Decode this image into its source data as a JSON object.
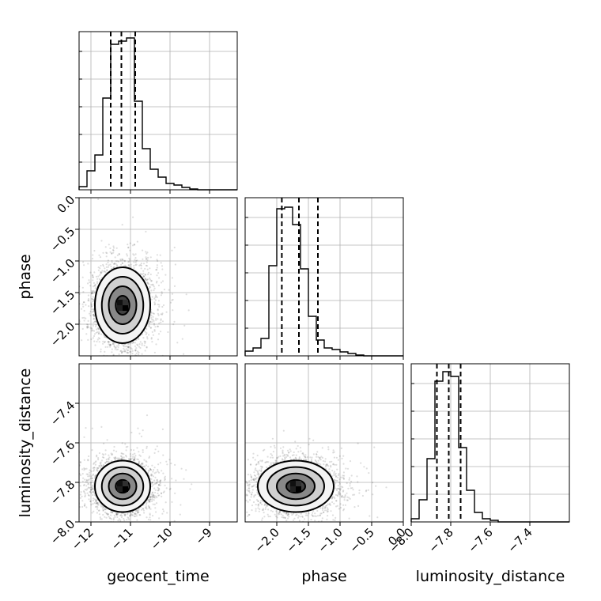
{
  "chart_data": {
    "type": "corner",
    "parameters": [
      "geocent_time",
      "phase",
      "luminosity_distance"
    ],
    "axis_labels": {
      "geocent_time": "geocent_time",
      "phase": "phase",
      "luminosity_distance": "luminosity_distance"
    },
    "ranges": {
      "geocent_time": [
        -12.3,
        -8.3
      ],
      "phase": [
        -2.5,
        0.0
      ],
      "luminosity_distance": [
        -8.0,
        -7.2
      ]
    },
    "ticks": {
      "geocent_time": {
        "values": [
          -12,
          -11,
          -10,
          -9
        ],
        "labels": [
          "−12",
          "−11",
          "−10",
          "−9"
        ]
      },
      "phase": {
        "values": [
          -2.0,
          -1.5,
          -1.0,
          -0.5,
          0.0
        ],
        "labels": [
          "−2.0",
          "−1.5",
          "−1.0",
          "−0.5",
          "0.0"
        ]
      },
      "luminosity_distance": {
        "values": [
          -8.0,
          -7.8,
          -7.6,
          -7.4
        ],
        "labels": [
          "−8.0",
          "−7.8",
          "−7.6",
          "−7.4"
        ]
      }
    },
    "grid": true,
    "histograms": {
      "geocent_time": {
        "bins": 20,
        "counts": [
          0.02,
          0.12,
          0.22,
          0.58,
          0.92,
          0.94,
          0.96,
          0.56,
          0.26,
          0.13,
          0.08,
          0.04,
          0.03,
          0.015,
          0.005,
          0.0,
          0.0,
          0.0,
          0.0,
          0.0
        ],
        "quantiles": [
          -11.5,
          -11.23,
          -10.88
        ]
      },
      "phase": {
        "bins": 20,
        "counts": [
          0.03,
          0.05,
          0.11,
          0.57,
          0.93,
          0.94,
          0.83,
          0.55,
          0.25,
          0.1,
          0.05,
          0.04,
          0.025,
          0.015,
          0.005,
          0.0,
          0.0,
          0.0,
          0.0,
          0.0
        ],
        "quantiles": [
          -1.92,
          -1.65,
          -1.35
        ]
      },
      "luminosity_distance": {
        "bins": 20,
        "counts": [
          0.02,
          0.14,
          0.4,
          0.89,
          0.95,
          0.92,
          0.47,
          0.2,
          0.06,
          0.02,
          0.01,
          0.0,
          0.0,
          0.0,
          0.0,
          0.0,
          0.0,
          0.0,
          0.0,
          0.0
        ],
        "quantiles": [
          -7.87,
          -7.81,
          -7.75
        ]
      }
    },
    "contour_pairs": [
      {
        "x": "geocent_time",
        "y": "phase",
        "center": [
          -11.2,
          -1.7
        ],
        "sigma": [
          0.35,
          0.3
        ],
        "points": 3500
      },
      {
        "x": "geocent_time",
        "y": "luminosity_distance",
        "center": [
          -11.2,
          -7.82
        ],
        "sigma": [
          0.35,
          0.065
        ],
        "points": 3500
      },
      {
        "x": "phase",
        "y": "luminosity_distance",
        "center": [
          -1.7,
          -7.82
        ],
        "sigma": [
          0.3,
          0.065
        ],
        "points": 3500
      }
    ],
    "contour_levels_sigma": [
      0.5,
      1.0,
      1.5,
      2.0
    ]
  }
}
